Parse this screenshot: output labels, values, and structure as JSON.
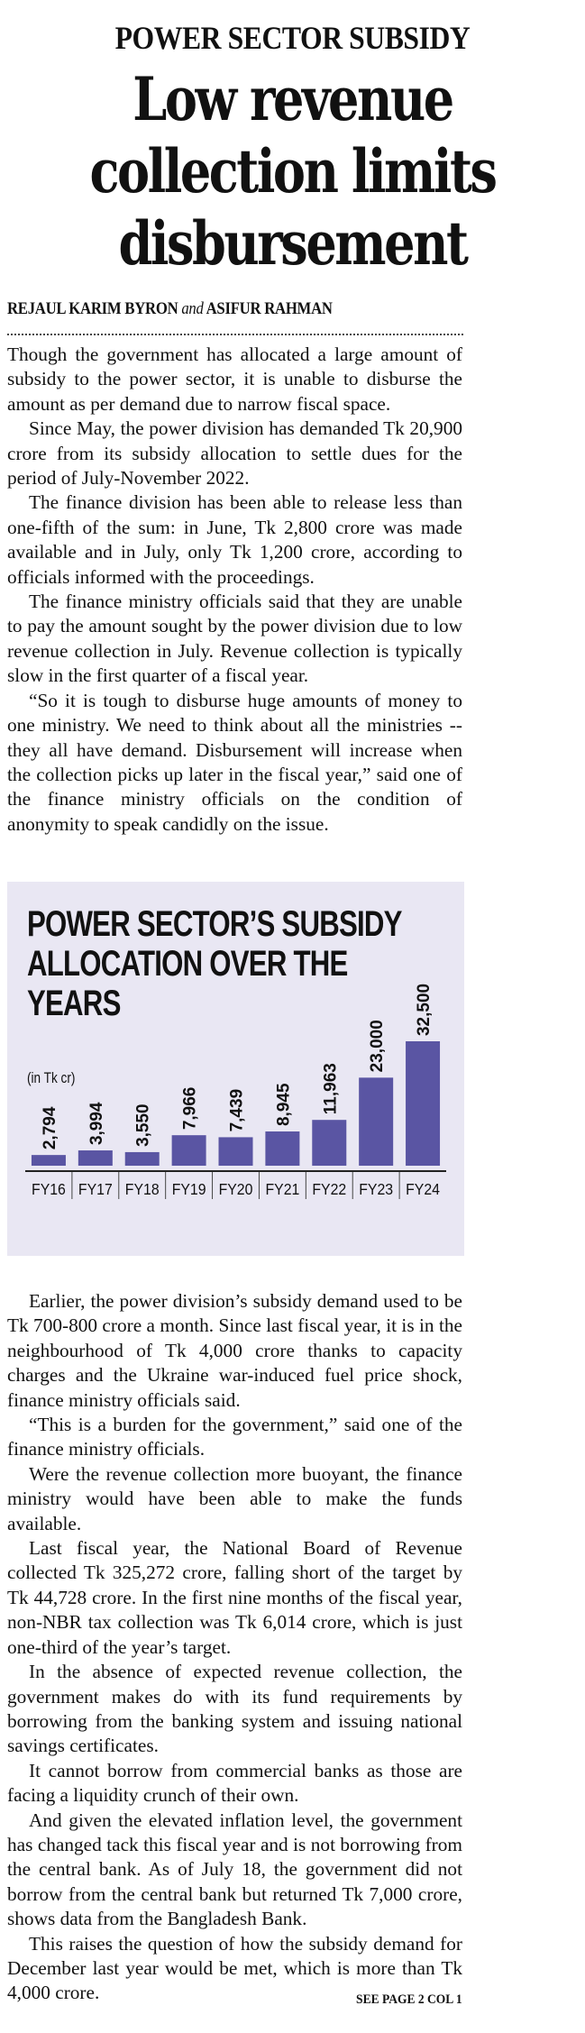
{
  "article": {
    "kicker": "POWER SECTOR SUBSIDY",
    "headline_lines": [
      "Low revenue",
      "collection limits",
      "disbursement"
    ],
    "byline": {
      "author1": "REJAUL KARIM BYRON",
      "conjunction": "and",
      "author2": "ASIFUR RAHMAN"
    },
    "paragraphs_before_chart": [
      "Though the government has allocated a large amount of subsidy to the power sector, it is unable to disburse the amount as per demand due to narrow fiscal space.",
      "Since May, the power division has demanded Tk 20,900 crore from its subsidy allocation to settle dues for the period of July-November 2022.",
      "The finance division has been able to release less than one-fifth of the sum: in June, Tk 2,800 crore was made available and in July, only Tk 1,200 crore, according to officials informed with the proceedings.",
      "The finance ministry officials said that they are unable to pay the amount sought by the power division due to low revenue collection in July. Revenue collection is typically slow in the first quarter of a fiscal year.",
      "“So it is tough to disburse huge amounts of money to one ministry. We need to think about all the ministries -- they all have demand. Disbursement will increase when the collection picks up later in the fiscal year,” said one of the finance ministry officials on the condition of anonymity to speak candidly on the issue."
    ],
    "paragraphs_after_chart": [
      "Earlier, the power division’s subsidy demand used to be Tk 700-800 crore a month. Since last fiscal year, it is in the neighbourhood of Tk 4,000 crore thanks to capacity charges and the Ukraine war-induced fuel price shock, finance ministry officials said.",
      "“This is a burden for the government,” said one of the finance ministry officials.",
      "Were the revenue collection more buoyant, the finance ministry would have been able to make the funds available.",
      "Last fiscal year, the National Board of Revenue collected Tk 325,272 crore, falling short of the target by Tk 44,728 crore. In the first nine months of the fiscal year, non-NBR tax collection was Tk 6,014 crore, which is just one-third of the year’s target.",
      "In the absence of expected revenue collection, the government makes do with its fund requirements by borrowing from the banking system and issuing national savings certificates.",
      "It cannot borrow from commercial banks as those are facing a liquidity crunch of their own.",
      "And given the elevated inflation level, the government has changed tack this fiscal year and is not borrowing from the central bank. As of July 18, the government did not borrow from the central bank but returned Tk 7,000 crore, shows data from the Bangladesh Bank.",
      "This raises the question of how the subsidy demand for December last year would be met, which is more than Tk 4,000 crore."
    ],
    "continuation": "SEE PAGE 2 COL 1"
  },
  "colors": {
    "bar": "#5a55a3",
    "chart_bg": "#e9e7f3",
    "text": "#111111"
  },
  "chart_data": {
    "type": "bar",
    "title_lines": [
      "POWER SECTOR’S SUBSIDY",
      "ALLOCATION OVER THE",
      "YEARS"
    ],
    "title": "POWER SECTOR’S SUBSIDY ALLOCATION OVER THE YEARS",
    "subtitle": "(in Tk cr)",
    "categories": [
      "FY16",
      "FY17",
      "FY18",
      "FY19",
      "FY20",
      "FY21",
      "FY22",
      "FY23",
      "FY24"
    ],
    "values": [
      2794,
      3994,
      3550,
      7966,
      7439,
      8945,
      11963,
      23000,
      32500
    ],
    "data_labels": [
      "2,794",
      "3,994",
      "3,550",
      "7,966",
      "7,439",
      "8,945",
      "11,963",
      "23,000",
      "32,500"
    ],
    "xlabel": "",
    "ylabel": "",
    "ylim": [
      0,
      32500
    ],
    "grid": false,
    "legend": "none"
  }
}
